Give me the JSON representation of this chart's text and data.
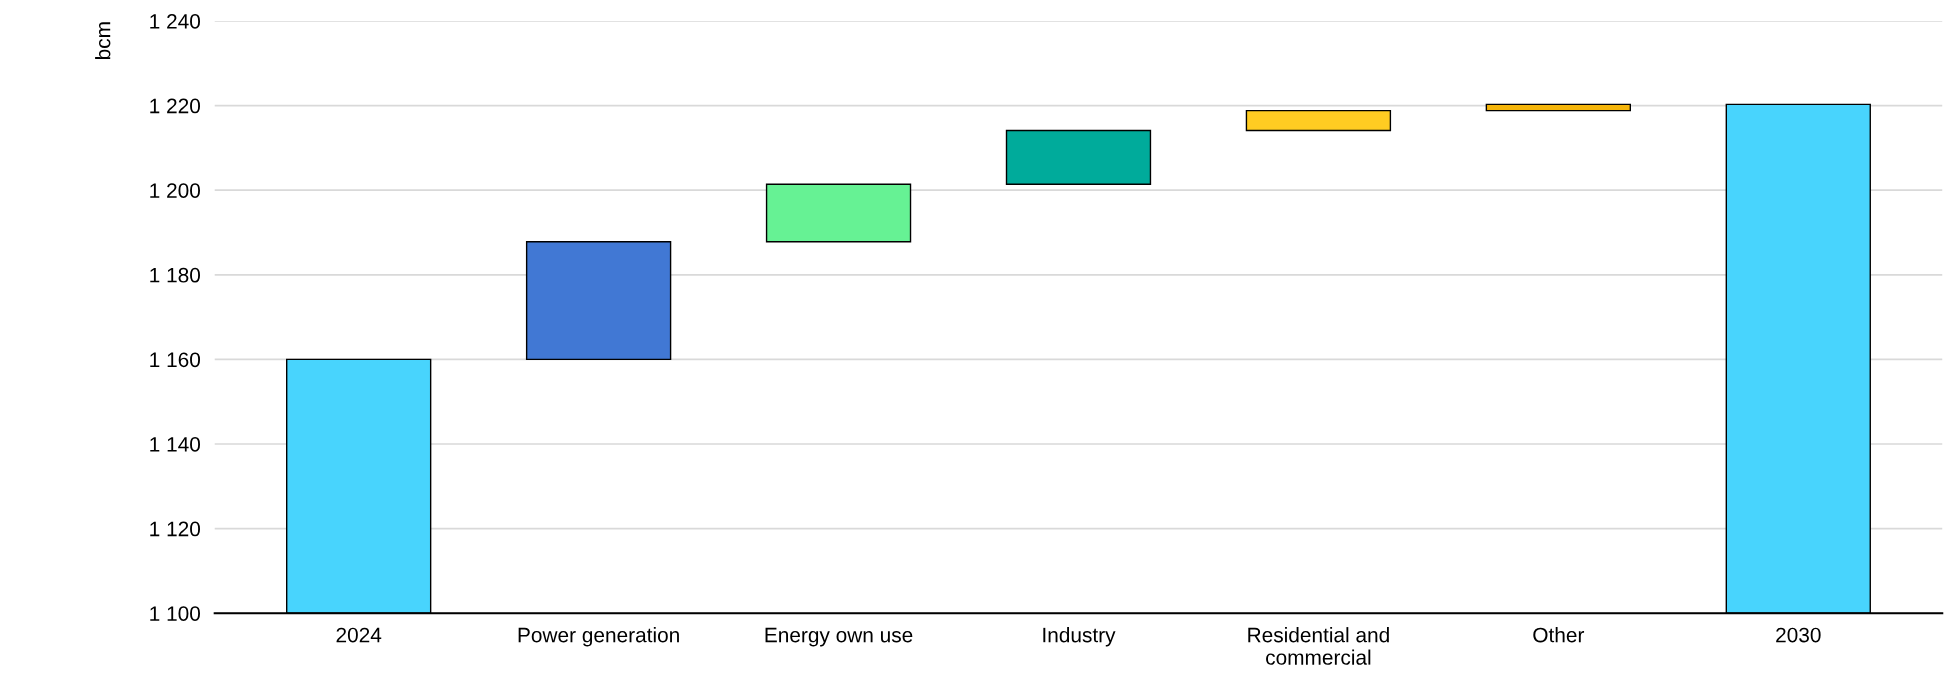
{
  "chart_data": {
    "type": "bar",
    "ylabel": "bcm",
    "categories": [
      "2024",
      "Power generation",
      "Energy own use",
      "Industry",
      "Residential and commercial",
      "Other",
      "2030"
    ],
    "values": [
      60,
      27.8,
      13.6,
      12.7,
      4.7,
      1.5,
      120.3
    ],
    "base": [
      1100,
      1160,
      1187.8,
      1201.4,
      1214.1,
      1218.8,
      1100
    ],
    "colors": [
      "#48d4fd",
      "#4178d4",
      "#66f294",
      "#00ab9b",
      "#ffcc22",
      "#f5b50a",
      "#48d4fd"
    ],
    "ylim": [
      1100,
      1240
    ],
    "yticks": [
      {
        "value": 1100,
        "label": "1 100"
      },
      {
        "value": 1120,
        "label": "1 120"
      },
      {
        "value": 1140,
        "label": "1 140"
      },
      {
        "value": 1160,
        "label": "1 160"
      },
      {
        "value": 1180,
        "label": "1 180"
      },
      {
        "value": 1200,
        "label": "1 200"
      },
      {
        "value": 1220,
        "label": "1 220"
      },
      {
        "value": 1240,
        "label": "1 240"
      }
    ],
    "grid": "y"
  }
}
